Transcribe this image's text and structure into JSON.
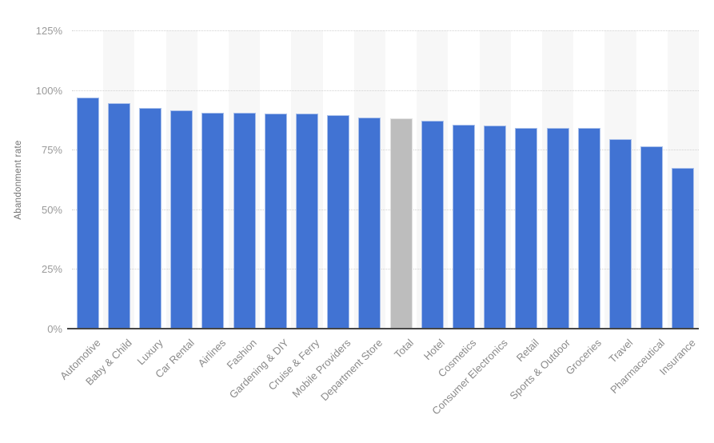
{
  "chart_data": {
    "type": "bar",
    "title": "",
    "xlabel": "",
    "ylabel": "Abandonment rate",
    "unit": "%",
    "ylim": [
      0,
      125
    ],
    "ytick_step": 25,
    "ytick_labels": [
      "0%",
      "25%",
      "50%",
      "75%",
      "100%",
      "125%"
    ],
    "grid": "horizontal-dotted",
    "legend": "none",
    "categories": [
      "Automotive",
      "Baby & Child",
      "Luxury",
      "Car Rental",
      "Airlines",
      "Fashion",
      "Gardening & DIY",
      "Cruise & Ferry",
      "Mobile Providers",
      "Department Store",
      "Total",
      "Hotel",
      "Cosmetics",
      "Consumer Electronics",
      "Retail",
      "Sports & Outdoor",
      "Groceries",
      "Travel",
      "Pharmaceutical",
      "Insurance"
    ],
    "values": [
      97,
      94.5,
      92.5,
      91.5,
      90.5,
      90.5,
      90,
      90,
      89.5,
      88.5,
      88,
      87,
      85.5,
      85,
      84,
      84,
      84,
      79.5,
      76.5,
      67.5
    ],
    "highlighted_category": "Total",
    "colors": {
      "bar": "#4173d3",
      "highlighted_bar": "#bdbdbd",
      "band": "#f7f7f7",
      "gridline": "#d2d2d2",
      "baseline": "#454545",
      "tick_label": "#9a9a9a",
      "category_label": "#8a8a8a",
      "axis_title": "#737373"
    }
  }
}
